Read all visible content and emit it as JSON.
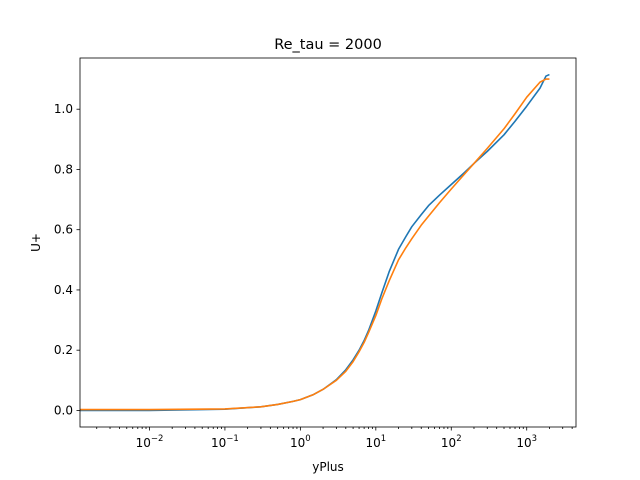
{
  "chart_data": {
    "type": "line",
    "title": "Re_tau = 2000",
    "xlabel": "yPlus",
    "ylabel": "U+",
    "xscale": "log",
    "xlim": [
      0.0012,
      4500
    ],
    "ylim": [
      -0.055,
      1.17
    ],
    "grid": false,
    "x_ticks": [
      {
        "value": 0.01,
        "base": "10",
        "exp": "−2"
      },
      {
        "value": 0.1,
        "base": "10",
        "exp": "−1"
      },
      {
        "value": 1,
        "base": "10",
        "exp": "0"
      },
      {
        "value": 10,
        "base": "10",
        "exp": "1"
      },
      {
        "value": 100,
        "base": "10",
        "exp": "2"
      },
      {
        "value": 1000,
        "base": "10",
        "exp": "3"
      }
    ],
    "y_ticks": [
      {
        "value": 0.0,
        "label": "0.0"
      },
      {
        "value": 0.2,
        "label": "0.2"
      },
      {
        "value": 0.4,
        "label": "0.4"
      },
      {
        "value": 0.6,
        "label": "0.6"
      },
      {
        "value": 0.8,
        "label": "0.8"
      },
      {
        "value": 1.0,
        "label": "1.0"
      }
    ],
    "series": [
      {
        "color": "#1f77b4",
        "x": [
          0.0012,
          0.01,
          0.1,
          0.3,
          0.5,
          0.8,
          1.0,
          1.5,
          2,
          3,
          4,
          5,
          6,
          7,
          8,
          10,
          12,
          15,
          20,
          25,
          30,
          40,
          50,
          70,
          100,
          150,
          200,
          300,
          500,
          700,
          1000,
          1500,
          1800,
          2000
        ],
        "y": [
          0.0,
          0.0,
          0.004,
          0.012,
          0.02,
          0.03,
          0.036,
          0.053,
          0.07,
          0.102,
          0.135,
          0.168,
          0.2,
          0.232,
          0.265,
          0.33,
          0.39,
          0.46,
          0.535,
          0.577,
          0.61,
          0.65,
          0.68,
          0.715,
          0.75,
          0.79,
          0.82,
          0.86,
          0.915,
          0.96,
          1.01,
          1.07,
          1.11,
          1.115
        ]
      },
      {
        "color": "#ff7f0e",
        "x": [
          0.0012,
          0.01,
          0.1,
          0.3,
          0.5,
          0.8,
          1.0,
          1.5,
          2,
          3,
          4,
          5,
          6,
          7,
          8,
          10,
          12,
          15,
          20,
          25,
          30,
          40,
          50,
          70,
          100,
          150,
          200,
          300,
          500,
          700,
          1000,
          1500,
          1800,
          2000
        ],
        "y": [
          0.003,
          0.003,
          0.005,
          0.012,
          0.02,
          0.03,
          0.036,
          0.053,
          0.07,
          0.1,
          0.13,
          0.162,
          0.195,
          0.226,
          0.258,
          0.315,
          0.37,
          0.43,
          0.5,
          0.54,
          0.57,
          0.615,
          0.645,
          0.69,
          0.735,
          0.785,
          0.82,
          0.87,
          0.935,
          0.985,
          1.04,
          1.09,
          1.1,
          1.1
        ]
      }
    ]
  }
}
